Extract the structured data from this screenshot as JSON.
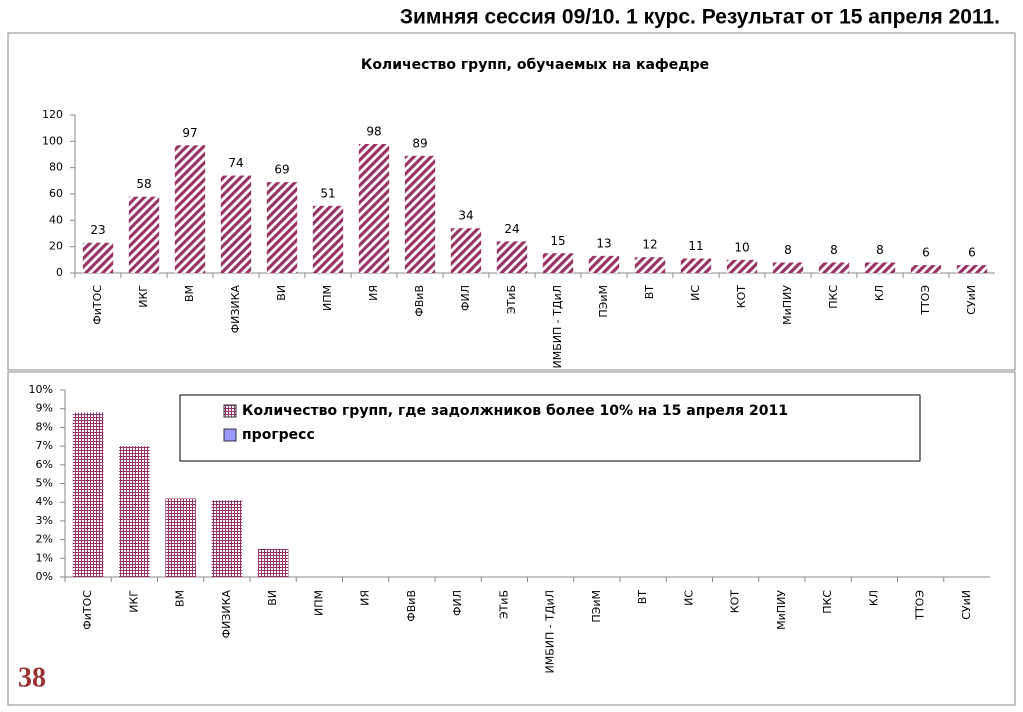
{
  "slide_title": "Зимняя сессия 09/10.   1 курс.  Результат от 15 апреля 2011.",
  "page_number": "38",
  "chart_data": [
    {
      "type": "bar",
      "title": "Количество групп, обучаемых на кафедре",
      "categories": [
        "ФиТОС",
        "ИКГ",
        "ВМ",
        "ФИЗИКА",
        "ВИ",
        "ИПМ",
        "ИЯ",
        "ФВиВ",
        "ФИЛ",
        "ЭТиБ",
        "ИМБИП - ТДиЛ",
        "ПЭиМ",
        "ВТ",
        "ИС",
        "КОТ",
        "МиПИУ",
        "ПКС",
        "КЛ",
        "ТТОЭ",
        "СУиИ"
      ],
      "series": [
        {
          "color": "#993366",
          "pattern": "diagonal-hatch",
          "values": [
            23,
            58,
            97,
            74,
            69,
            51,
            98,
            89,
            34,
            24,
            15,
            13,
            12,
            11,
            10,
            8,
            8,
            8,
            6,
            6
          ]
        }
      ],
      "data_labels": true,
      "ylim": [
        0,
        120
      ],
      "yticks": [
        0,
        20,
        40,
        60,
        80,
        100,
        120
      ]
    },
    {
      "type": "bar",
      "categories": [
        "ФиТОС",
        "ИКГ",
        "ВМ",
        "ФИЗИКА",
        "ВИ",
        "ИПМ",
        "ИЯ",
        "ФВиВ",
        "ФИЛ",
        "ЭТиБ",
        "ИМБИП - ТДиЛ",
        "ПЭиМ",
        "ВТ",
        "ИС",
        "КОТ",
        "МиПИУ",
        "ПКС",
        "КЛ",
        "ТТОЭ",
        "СУиИ"
      ],
      "series": [
        {
          "name": "Количество групп, где задолжников более  10% на 15 апреля 2011",
          "color": "#993366",
          "pattern": "cross-hatch",
          "values": [
            8.8,
            7,
            4.2,
            4.1,
            1.5,
            0,
            0,
            0,
            0,
            0,
            0,
            0,
            0,
            0,
            0,
            0,
            0,
            0,
            0,
            0
          ]
        },
        {
          "name": "прогресс",
          "color": "#9999ff",
          "pattern": "solid",
          "values": [
            null,
            null,
            null,
            null,
            null,
            null,
            null,
            null,
            null,
            null,
            null,
            null,
            null,
            null,
            null,
            null,
            null,
            null,
            null,
            null
          ]
        }
      ],
      "data_labels": false,
      "legend": "top",
      "ylim": [
        0,
        10
      ],
      "yticks": [
        {
          "value": 0,
          "label": "0%"
        },
        {
          "value": 1,
          "label": "1%"
        },
        {
          "value": 2,
          "label": "2%"
        },
        {
          "value": 3,
          "label": "3%"
        },
        {
          "value": 4,
          "label": "4%"
        },
        {
          "value": 5,
          "label": "5%"
        },
        {
          "value": 6,
          "label": "6%"
        },
        {
          "value": 7,
          "label": "7%"
        },
        {
          "value": 8,
          "label": "8%"
        },
        {
          "value": 9,
          "label": "9%"
        },
        {
          "value": 10,
          "label": "10%"
        }
      ]
    }
  ]
}
